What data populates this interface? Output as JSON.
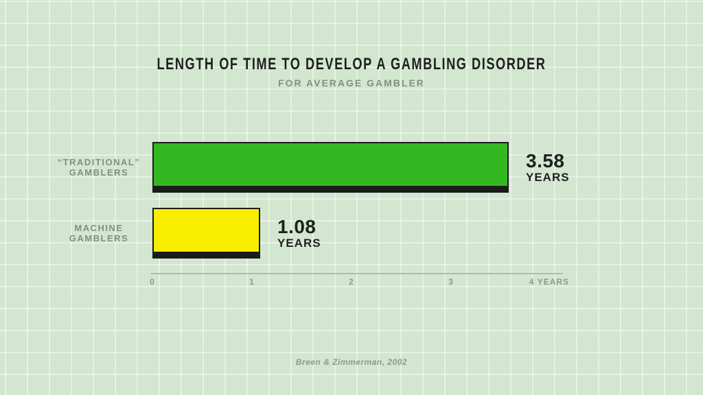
{
  "chart_data": {
    "type": "bar",
    "orientation": "horizontal",
    "title": "LENGTH OF TIME TO DEVELOP A GAMBLING DISORDER",
    "subtitle": "FOR AVERAGE GAMBLER",
    "source": "Breen & Zimmerman, 2002",
    "xlabel": "YEARS",
    "xlim": [
      0,
      4
    ],
    "x_tick_labels": [
      "0",
      "1",
      "2",
      "3",
      "4 YEARS"
    ],
    "grid": "background tile grid only",
    "legend": "none",
    "rows": [
      {
        "category": "“Traditional” gamblers",
        "label_lines": [
          "“TRADITIONAL”",
          "GAMBLERS"
        ],
        "value": 3.58,
        "value_label": "3.58",
        "unit_label": "YEARS",
        "color": "#33b822"
      },
      {
        "category": "Machine gamblers",
        "label_lines": [
          "MACHINE",
          "GAMBLERS"
        ],
        "value": 1.08,
        "value_label": "1.08",
        "unit_label": "YEARS",
        "color": "#f9ee00"
      }
    ],
    "colors": {
      "background": "#d3e6d0",
      "grid_line": "#e6f0e3",
      "title_text": "#1c211c",
      "muted_text": "#7f917f",
      "bar_outline": "#1b1b1b",
      "axis_line": "#aabfa8"
    }
  }
}
